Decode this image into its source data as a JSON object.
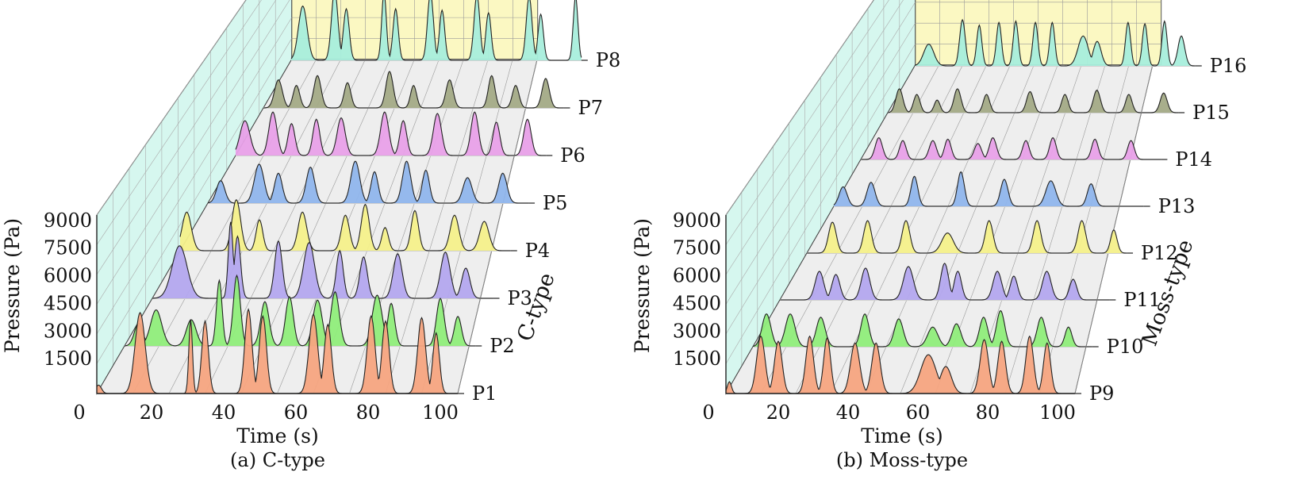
{
  "chart_data": [
    {
      "type": "area",
      "subtitle": "(a) C-type",
      "xlabel": "Time (s)",
      "ylabel": "Pressure (Pa)",
      "zlabel": "C-type",
      "xlim": [
        0,
        100
      ],
      "ylim": [
        0,
        9000
      ],
      "x_ticks": [
        "0",
        "20",
        "40",
        "60",
        "80",
        "100"
      ],
      "y_ticks": [
        "1500",
        "3000",
        "4500",
        "6000",
        "7500",
        "9000"
      ],
      "grid": true,
      "series": [
        {
          "name": "P1",
          "color": "#f5a47f",
          "peaks": [
            [
              0.5,
              500,
              0.8
            ],
            [
              12,
              4800,
              1.4
            ],
            [
              26,
              4400,
              0.5
            ],
            [
              30,
              4300,
              0.9
            ],
            [
              42,
              5000,
              1.0
            ],
            [
              46,
              4600,
              1.0
            ],
            [
              60,
              4700,
              1.2
            ],
            [
              64,
              4100,
              1.0
            ],
            [
              76,
              4600,
              1.1
            ],
            [
              80,
              4300,
              1.0
            ],
            [
              90,
              4500,
              1.1
            ],
            [
              94,
              3600,
              0.9
            ]
          ]
        },
        {
          "name": "P2",
          "color": "#8fed7a",
          "peaks": [
            [
              4,
              1400,
              1.2
            ],
            [
              9,
              2200,
              1.6
            ],
            [
              19,
              1600,
              1.4
            ],
            [
              27,
              4000,
              0.8
            ],
            [
              32,
              4300,
              1.0
            ],
            [
              40,
              2700,
              1.2
            ],
            [
              47,
              3000,
              1.1
            ],
            [
              55,
              2800,
              1.3
            ],
            [
              60,
              3300,
              1.2
            ],
            [
              72,
              3100,
              1.4
            ],
            [
              76,
              2600,
              1.0
            ],
            [
              90,
              2900,
              1.1
            ],
            [
              95,
              1800,
              1.0
            ]
          ]
        },
        {
          "name": "P3",
          "color": "#b3a6ee",
          "peaks": [
            [
              8,
              3300,
              2.2
            ],
            [
              23,
              4800,
              0.7
            ],
            [
              25,
              3900,
              0.9
            ],
            [
              37,
              3600,
              1.1
            ],
            [
              46,
              3500,
              1.6
            ],
            [
              55,
              3000,
              1.0
            ],
            [
              62,
              2600,
              1.1
            ],
            [
              72,
              2800,
              1.3
            ],
            [
              86,
              2900,
              1.4
            ],
            [
              92,
              1900,
              1.2
            ]
          ]
        },
        {
          "name": "P4",
          "color": "#f4f08a",
          "peaks": [
            [
              2,
              2500,
              1.4
            ],
            [
              17,
              3300,
              1.3
            ],
            [
              24,
              2000,
              1.0
            ],
            [
              37,
              2500,
              1.3
            ],
            [
              50,
              2300,
              1.2
            ],
            [
              56,
              3000,
              1.2
            ],
            [
              62,
              1500,
              1.0
            ],
            [
              71,
              2600,
              1.1
            ],
            [
              83,
              2300,
              1.3
            ],
            [
              92,
              1900,
              1.4
            ]
          ]
        },
        {
          "name": "P5",
          "color": "#8fb5ec",
          "peaks": [
            [
              4,
              1500,
              1.3
            ],
            [
              16,
              2600,
              1.5
            ],
            [
              22,
              2000,
              1.2
            ],
            [
              32,
              2400,
              1.3
            ],
            [
              46,
              2800,
              1.4
            ],
            [
              52,
              2100,
              1.1
            ],
            [
              62,
              2800,
              1.3
            ],
            [
              68,
              2200,
              1.1
            ],
            [
              81,
              1700,
              1.4
            ],
            [
              92,
              2000,
              1.3
            ]
          ]
        },
        {
          "name": "P6",
          "color": "#e8a0e8",
          "peaks": [
            [
              3,
              2400,
              1.6
            ],
            [
              12,
              3000,
              1.3
            ],
            [
              18,
              2200,
              1.1
            ],
            [
              26,
              2500,
              1.1
            ],
            [
              34,
              2600,
              1.3
            ],
            [
              48,
              3000,
              1.3
            ],
            [
              54,
              2400,
              1.1
            ],
            [
              65,
              2900,
              1.3
            ],
            [
              77,
              3000,
              1.2
            ],
            [
              84,
              2300,
              1.1
            ],
            [
              94,
              2500,
              1.2
            ]
          ]
        },
        {
          "name": "P7",
          "color": "#a3aa86",
          "peaks": [
            [
              5,
              2000,
              1.3
            ],
            [
              11,
              1600,
              1.1
            ],
            [
              18,
              2300,
              1.2
            ],
            [
              28,
              1800,
              1.1
            ],
            [
              42,
              2600,
              1.2
            ],
            [
              50,
              1600,
              1.0
            ],
            [
              62,
              2000,
              1.2
            ],
            [
              76,
              2300,
              1.1
            ],
            [
              84,
              1600,
              1.1
            ],
            [
              94,
              2100,
              1.2
            ]
          ]
        },
        {
          "name": "P8",
          "color": "#a8eedc",
          "peaks": [
            [
              4,
              4000,
              1.5
            ],
            [
              15,
              5200,
              1.1
            ],
            [
              19,
              3800,
              1.0
            ],
            [
              32,
              5000,
              0.8
            ],
            [
              36,
              3800,
              0.9
            ],
            [
              48,
              5000,
              1.0
            ],
            [
              52,
              3700,
              0.9
            ],
            [
              64,
              4800,
              1.0
            ],
            [
              68,
              3500,
              0.9
            ],
            [
              82,
              4700,
              1.0
            ],
            [
              86,
              3400,
              0.9
            ],
            [
              98,
              4700,
              0.8
            ]
          ]
        }
      ]
    },
    {
      "type": "area",
      "subtitle": "(b) Moss-type",
      "xlabel": "Time (s)",
      "ylabel": "Pressure (Pa)",
      "zlabel": "Moss-type",
      "xlim": [
        0,
        100
      ],
      "ylim": [
        0,
        9000
      ],
      "x_ticks": [
        "0",
        "20",
        "40",
        "60",
        "80",
        "100"
      ],
      "y_ticks": [
        "1500",
        "3000",
        "4500",
        "6000",
        "7500",
        "9000"
      ],
      "grid": true,
      "series": [
        {
          "name": "P9",
          "color": "#f5a47f",
          "peaks": [
            [
              1,
              700,
              0.6
            ],
            [
              10,
              3400,
              1.2
            ],
            [
              15,
              3100,
              1.1
            ],
            [
              24,
              3400,
              1.1
            ],
            [
              29,
              3300,
              1.0
            ],
            [
              37,
              3000,
              1.3
            ],
            [
              43,
              3000,
              1.2
            ],
            [
              58,
              2300,
              2.2
            ],
            [
              63,
              1600,
              1.6
            ],
            [
              74,
              3200,
              1.2
            ],
            [
              79,
              3100,
              1.1
            ],
            [
              87,
              3400,
              1.1
            ],
            [
              92,
              3000,
              1.0
            ]
          ]
        },
        {
          "name": "P10",
          "color": "#8fed7a",
          "peaks": [
            [
              4,
              2000,
              1.3
            ],
            [
              11,
              2000,
              1.4
            ],
            [
              20,
              1800,
              1.3
            ],
            [
              33,
              2000,
              1.2
            ],
            [
              43,
              1700,
              1.3
            ],
            [
              53,
              1200,
              1.5
            ],
            [
              60,
              1400,
              1.3
            ],
            [
              68,
              1800,
              1.2
            ],
            [
              73,
              2200,
              1.2
            ],
            [
              85,
              1800,
              1.2
            ],
            [
              93,
              1200,
              1.0
            ]
          ]
        },
        {
          "name": "P11",
          "color": "#b3a6ee",
          "peaks": [
            [
              12,
              1800,
              1.3
            ],
            [
              17,
              1600,
              1.2
            ],
            [
              26,
              2000,
              1.3
            ],
            [
              39,
              2100,
              1.5
            ],
            [
              50,
              2300,
              1.2
            ],
            [
              54,
              1800,
              1.1
            ],
            [
              66,
              1800,
              1.3
            ],
            [
              71,
              1500,
              1.1
            ],
            [
              81,
              1800,
              1.3
            ],
            [
              89,
              1300,
              1.1
            ]
          ]
        },
        {
          "name": "P12",
          "color": "#f4f08a",
          "peaks": [
            [
              8,
              2000,
              1.2
            ],
            [
              19,
              2100,
              1.2
            ],
            [
              31,
              2100,
              1.2
            ],
            [
              44,
              1300,
              1.8
            ],
            [
              57,
              2100,
              1.2
            ],
            [
              72,
              2100,
              1.2
            ],
            [
              86,
              2100,
              1.2
            ],
            [
              96,
              1500,
              1.0
            ]
          ]
        },
        {
          "name": "P13",
          "color": "#8fb5ec",
          "peaks": [
            [
              3,
              1300,
              1.3
            ],
            [
              12,
              1600,
              1.3
            ],
            [
              26,
              2000,
              1.1
            ],
            [
              41,
              2300,
              1.1
            ],
            [
              55,
              1800,
              1.2
            ],
            [
              70,
              1700,
              1.6
            ],
            [
              83,
              1500,
              1.2
            ]
          ]
        },
        {
          "name": "P14",
          "color": "#e8a0e8",
          "peaks": [
            [
              6,
              1500,
              1.2
            ],
            [
              14,
              1300,
              1.1
            ],
            [
              24,
              1300,
              1.2
            ],
            [
              29,
              1400,
              1.1
            ],
            [
              39,
              1100,
              1.2
            ],
            [
              44,
              1500,
              1.2
            ],
            [
              55,
              1300,
              1.1
            ],
            [
              64,
              1500,
              1.1
            ],
            [
              78,
              1400,
              1.1
            ],
            [
              90,
              1300,
              1.1
            ]
          ]
        },
        {
          "name": "P15",
          "color": "#a3aa86",
          "peaks": [
            [
              4,
              1700,
              1.2
            ],
            [
              10,
              1300,
              1.1
            ],
            [
              17,
              900,
              1.0
            ],
            [
              24,
              1700,
              1.2
            ],
            [
              34,
              1300,
              1.1
            ],
            [
              49,
              1500,
              1.2
            ],
            [
              61,
              1300,
              1.1
            ],
            [
              72,
              1600,
              1.2
            ],
            [
              83,
              1300,
              1.1
            ],
            [
              95,
              1400,
              1.2
            ]
          ]
        },
        {
          "name": "P16",
          "color": "#a8eedc",
          "peaks": [
            [
              5,
              1600,
              1.8
            ],
            [
              17,
              3400,
              1.0
            ],
            [
              23,
              3000,
              0.9
            ],
            [
              30,
              3200,
              0.9
            ],
            [
              36,
              3300,
              0.9
            ],
            [
              43,
              3200,
              0.9
            ],
            [
              49,
              3200,
              0.9
            ],
            [
              60,
              2200,
              1.8
            ],
            [
              65,
              1800,
              1.4
            ],
            [
              76,
              3200,
              0.9
            ],
            [
              82,
              3100,
              0.9
            ],
            [
              89,
              3300,
              0.9
            ],
            [
              95,
              2200,
              1.2
            ]
          ]
        }
      ]
    }
  ]
}
